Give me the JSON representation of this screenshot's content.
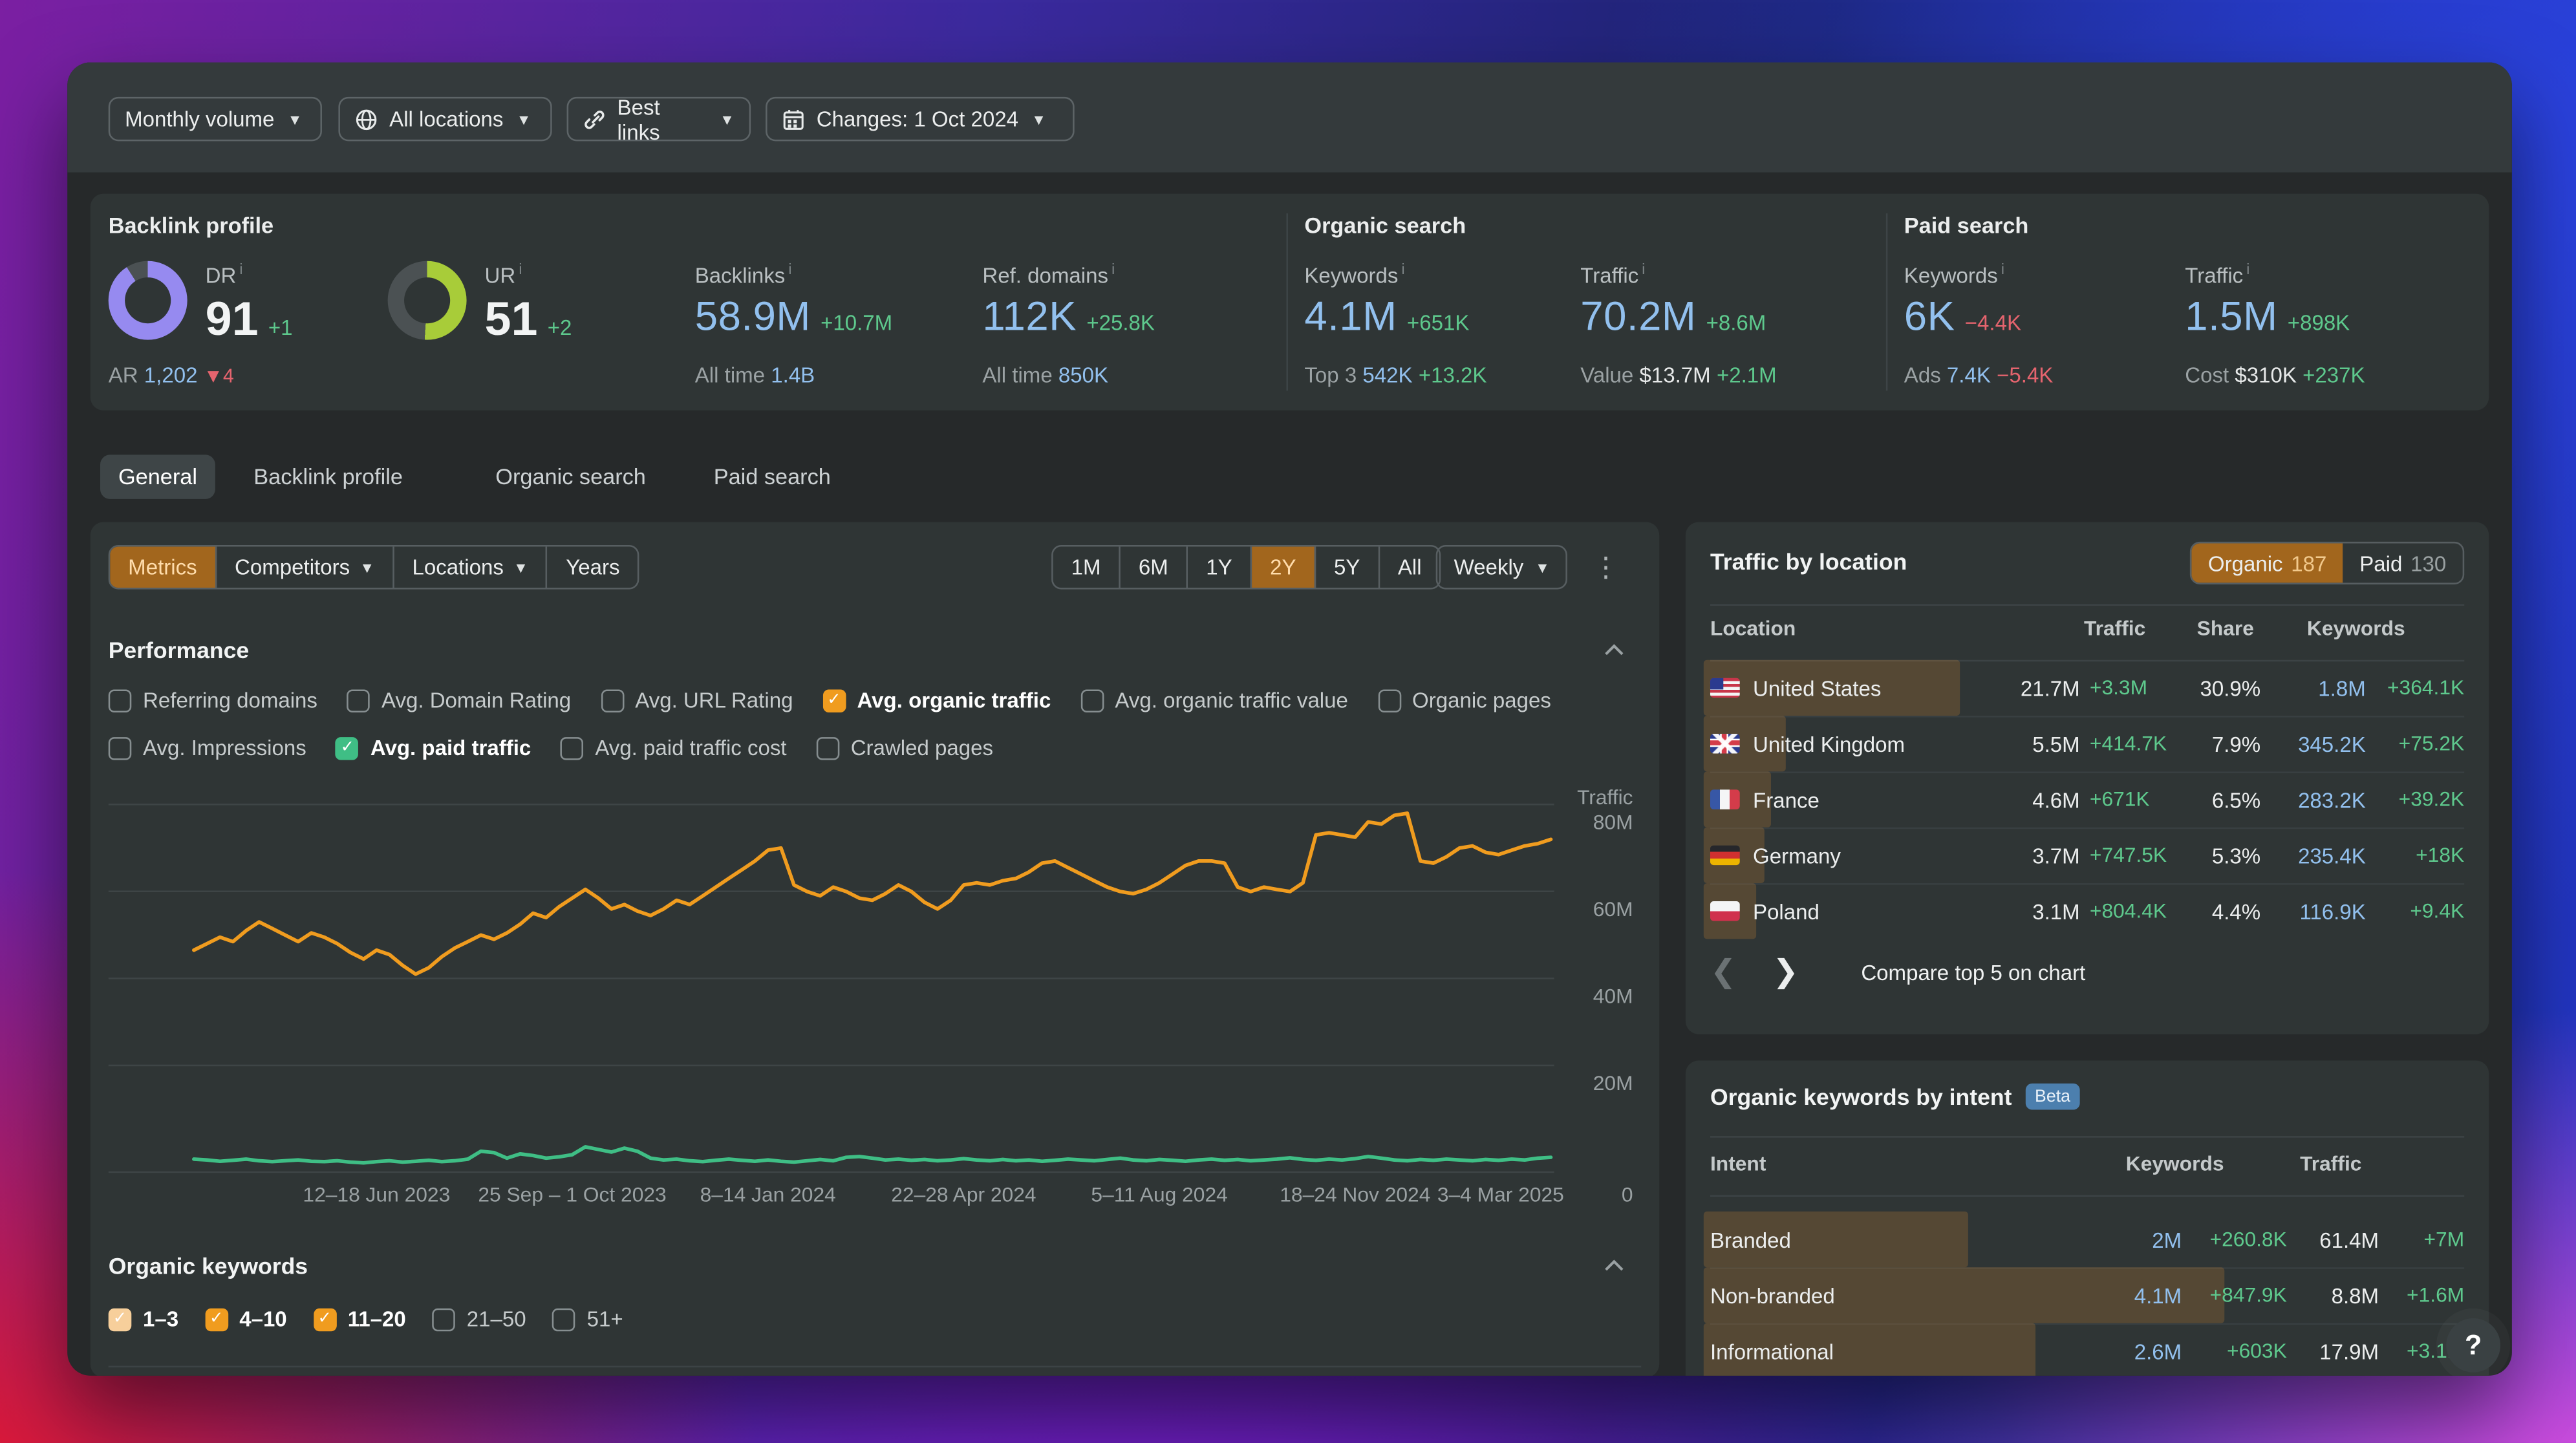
{
  "toolbar": {
    "items": [
      {
        "label": "Monthly volume",
        "icon": null
      },
      {
        "label": "All locations",
        "icon": "globe"
      },
      {
        "label": "Best links",
        "icon": "link"
      },
      {
        "label": "Changes: 1 Oct 2024",
        "icon": "calendar"
      }
    ]
  },
  "stats": {
    "backlink_profile": {
      "title": "Backlink profile",
      "dr": {
        "label": "DR",
        "value": "91",
        "delta": "+1",
        "pct": 91,
        "color": "#968af0",
        "ar_label": "AR",
        "ar_value": "1,202",
        "ar_delta": "4"
      },
      "ur": {
        "label": "UR",
        "value": "51",
        "delta": "+2",
        "pct": 51,
        "color": "#a8cc39"
      },
      "backlinks": {
        "label": "Backlinks",
        "value": "58.9M",
        "delta": "+10.7M",
        "alltime_label": "All time",
        "alltime_value": "1.4B"
      },
      "ref_domains": {
        "label": "Ref. domains",
        "value": "112K",
        "delta": "+25.8K",
        "alltime_label": "All time",
        "alltime_value": "850K"
      }
    },
    "organic_search": {
      "title": "Organic search",
      "keywords": {
        "label": "Keywords",
        "value": "4.1M",
        "delta": "+651K",
        "sub_label": "Top 3",
        "sub_value": "542K",
        "sub_delta": "+13.2K"
      },
      "traffic": {
        "label": "Traffic",
        "value": "70.2M",
        "delta": "+8.6M",
        "sub_label": "Value",
        "sub_value": "$13.7M",
        "sub_delta": "+2.1M"
      }
    },
    "paid_search": {
      "title": "Paid search",
      "keywords": {
        "label": "Keywords",
        "value": "6K",
        "delta": "−4.4K",
        "sub_label": "Ads",
        "sub_value": "7.4K",
        "sub_delta": "−5.4K"
      },
      "traffic": {
        "label": "Traffic",
        "value": "1.5M",
        "delta": "+898K",
        "sub_label": "Cost",
        "sub_value": "$310K",
        "sub_delta": "+237K"
      }
    }
  },
  "tabs": [
    {
      "label": "General",
      "active": true
    },
    {
      "label": "Backlink profile",
      "active": false
    },
    {
      "label": "Organic search",
      "active": false
    },
    {
      "label": "Paid search",
      "active": false
    }
  ],
  "controls": {
    "segments": [
      {
        "label": "Metrics",
        "active": true,
        "caret": false
      },
      {
        "label": "Competitors",
        "active": false,
        "caret": true
      },
      {
        "label": "Locations",
        "active": false,
        "caret": true
      },
      {
        "label": "Years",
        "active": false,
        "caret": false
      }
    ],
    "ranges": [
      "1M",
      "6M",
      "1Y",
      "2Y",
      "5Y",
      "All"
    ],
    "active_range": "2Y",
    "granularity": "Weekly"
  },
  "performance": {
    "title": "Performance",
    "rows": [
      [
        {
          "label": "Referring domains",
          "checked": false
        },
        {
          "label": "Avg. Domain Rating",
          "checked": false
        },
        {
          "label": "Avg. URL Rating",
          "checked": false
        },
        {
          "label": "Avg. organic traffic",
          "checked": true,
          "color": "#f09c1f"
        },
        {
          "label": "Avg. organic traffic value",
          "checked": false
        },
        {
          "label": "Organic pages",
          "checked": false
        }
      ],
      [
        {
          "label": "Avg. Impressions",
          "checked": false
        },
        {
          "label": "Avg. paid traffic",
          "checked": true,
          "color": "#3fbe85"
        },
        {
          "label": "Avg. paid traffic cost",
          "checked": false
        },
        {
          "label": "Crawled pages",
          "checked": false
        }
      ]
    ]
  },
  "chart_data": {
    "type": "line",
    "ylabel": "Traffic",
    "ylim": [
      0,
      88
    ],
    "yticks": [
      {
        "v": 80,
        "label": "80M"
      },
      {
        "v": 60,
        "label": "60M"
      },
      {
        "v": 40,
        "label": "40M"
      },
      {
        "v": 20,
        "label": "20M"
      }
    ],
    "zero_label": "0",
    "grid": true,
    "x_axis": {
      "labels": [
        "12–18 Jun 2023",
        "25 Sep – 1 Oct 2023",
        "8–14 Jan 2024",
        "22–28 Apr 2024",
        "5–11 Aug 2024",
        "18–24 Nov 2024",
        "3–4 Mar 2025"
      ],
      "tick_points": [
        14,
        29,
        44,
        59,
        74,
        89,
        104
      ],
      "n_points": 105
    },
    "series": [
      {
        "name": "Avg. organic traffic",
        "color": "#f09c1f",
        "unit": "M",
        "values": [
          51,
          52.5,
          54,
          53,
          55.5,
          57.5,
          56,
          54.5,
          53,
          55,
          54,
          52.5,
          50.5,
          49,
          51,
          50,
          47.5,
          45.5,
          47,
          49.5,
          51.5,
          53,
          54.5,
          53.5,
          55,
          57,
          59.5,
          58.5,
          61,
          63,
          65,
          63,
          60.5,
          61.5,
          60,
          59,
          60.5,
          62.5,
          61.5,
          63.5,
          65.5,
          67.5,
          69.5,
          71.5,
          74,
          74.5,
          66,
          64.5,
          63.5,
          65.5,
          64.5,
          63,
          62.5,
          64,
          66,
          64.5,
          62,
          60.5,
          62.5,
          66,
          66.5,
          66,
          67,
          67.5,
          69,
          71,
          71.5,
          70,
          68.5,
          67,
          65.5,
          64.5,
          64,
          65,
          66.5,
          68.5,
          70.5,
          71.5,
          71.5,
          71,
          65.5,
          64.5,
          65.5,
          65,
          64.5,
          66.5,
          77.5,
          78,
          77.5,
          77,
          80.5,
          80,
          82,
          82.5,
          71.5,
          71,
          72.5,
          74.5,
          75,
          73.5,
          73,
          74,
          75,
          75.5,
          76.5
        ]
      },
      {
        "name": "Avg. paid traffic",
        "color": "#3fbe85",
        "unit": "M",
        "values": [
          3,
          2.8,
          2.5,
          2.7,
          3,
          2.6,
          2.4,
          2.6,
          2.8,
          2.5,
          2.4,
          2.6,
          2.3,
          2.1,
          2.4,
          2.6,
          2.3,
          2.5,
          2.7,
          2.4,
          2.6,
          3,
          4.8,
          4.5,
          3.2,
          4.2,
          3.8,
          3.2,
          3.5,
          4,
          5.8,
          5.2,
          4.6,
          5.5,
          4.8,
          3.2,
          2.8,
          3,
          2.6,
          2.4,
          2.7,
          3,
          2.7,
          2.5,
          2.8,
          2.5,
          2.3,
          2.6,
          2.9,
          2.6,
          3.4,
          3.6,
          3.2,
          2.8,
          3,
          2.7,
          2.9,
          2.6,
          2.8,
          3.1,
          2.8,
          2.6,
          2.9,
          2.6,
          2.8,
          2.5,
          2.7,
          3,
          2.8,
          2.6,
          2.9,
          3.2,
          2.8,
          2.6,
          2.9,
          2.7,
          2.5,
          2.8,
          3,
          2.7,
          2.9,
          2.6,
          2.8,
          3,
          3.3,
          2.9,
          2.7,
          3,
          2.8,
          3.1,
          3.6,
          3.2,
          2.8,
          2.6,
          2.9,
          2.7,
          3,
          2.8,
          2.6,
          2.9,
          2.7,
          3,
          2.8,
          3.2,
          3.4
        ]
      }
    ]
  },
  "organic_keywords": {
    "title": "Organic keywords",
    "checkboxes": [
      {
        "label": "1–3",
        "checked": true,
        "color": "#f7cf9b"
      },
      {
        "label": "4–10",
        "checked": true,
        "color": "#f09c1f"
      },
      {
        "label": "11–20",
        "checked": true,
        "color": "#f09c1f"
      },
      {
        "label": "21–50",
        "checked": false
      },
      {
        "label": "51+",
        "checked": false
      }
    ]
  },
  "traffic_by_location": {
    "title": "Traffic by location",
    "tabs": [
      {
        "label": "Organic",
        "count": "187",
        "active": true
      },
      {
        "label": "Paid",
        "count": "130",
        "active": false
      }
    ],
    "columns": [
      "Location",
      "Traffic",
      "Share",
      "Keywords"
    ],
    "rows": [
      {
        "country": "United States",
        "flag": "us",
        "traffic": "21.7M",
        "traffic_delta": "+3.3M",
        "share": "30.9%",
        "keywords": "1.8M",
        "keywords_delta": "+364.1K",
        "bar_pct": 34
      },
      {
        "country": "United Kingdom",
        "flag": "gb",
        "traffic": "5.5M",
        "traffic_delta": "+414.7K",
        "share": "7.9%",
        "keywords": "345.2K",
        "keywords_delta": "+75.2K",
        "bar_pct": 11
      },
      {
        "country": "France",
        "flag": "fr",
        "traffic": "4.6M",
        "traffic_delta": "+671K",
        "share": "6.5%",
        "keywords": "283.2K",
        "keywords_delta": "+39.2K",
        "bar_pct": 9
      },
      {
        "country": "Germany",
        "flag": "de",
        "traffic": "3.7M",
        "traffic_delta": "+747.5K",
        "share": "5.3%",
        "keywords": "235.4K",
        "keywords_delta": "+18K",
        "bar_pct": 8
      },
      {
        "country": "Poland",
        "flag": "pl",
        "traffic": "3.1M",
        "traffic_delta": "+804.4K",
        "share": "4.4%",
        "keywords": "116.9K",
        "keywords_delta": "+9.4K",
        "bar_pct": 7
      }
    ],
    "pager_label": "Compare top 5 on chart"
  },
  "keywords_by_intent": {
    "title": "Organic keywords by intent",
    "badge": "Beta",
    "columns": [
      "Intent",
      "Keywords",
      "Traffic"
    ],
    "rows": [
      {
        "intent": "Branded",
        "keywords": "2M",
        "keywords_delta": "+260.8K",
        "traffic": "61.4M",
        "traffic_delta": "+7M",
        "bar_pct": 35
      },
      {
        "intent": "Non-branded",
        "keywords": "4.1M",
        "keywords_delta": "+847.9K",
        "traffic": "8.8M",
        "traffic_delta": "+1.6M",
        "bar_pct": 69
      },
      {
        "intent": "Informational",
        "keywords": "2.6M",
        "keywords_delta": "+603K",
        "traffic": "17.9M",
        "traffic_delta": "+3.1M",
        "bar_pct": 44
      }
    ]
  },
  "help_label": "?"
}
